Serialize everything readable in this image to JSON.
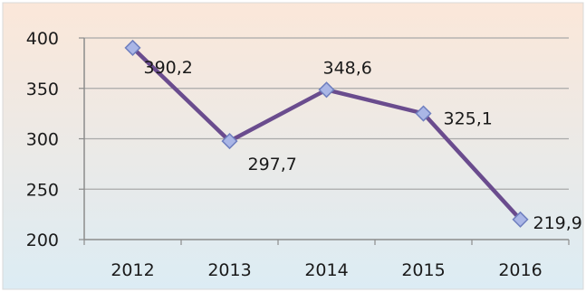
{
  "chart_data": {
    "type": "line",
    "x": [
      "2012",
      "2013",
      "2014",
      "2015",
      "2016"
    ],
    "series": [
      {
        "values": [
          390.2,
          297.7,
          348.6,
          325.1,
          219.9
        ],
        "labels": [
          "390,2",
          "297,7",
          "348,6",
          "325,1",
          "219,9"
        ]
      }
    ],
    "y_ticks": [
      "200",
      "250",
      "300",
      "350",
      "400"
    ],
    "ylim": [
      200,
      400
    ],
    "grid": true,
    "title": "",
    "xlabel": "",
    "ylabel": ""
  },
  "colors": {
    "line": "#6a4c8e",
    "marker_fill": "#aab6e6",
    "marker_stroke": "#6f7fbf",
    "grid": "#a9a9a9",
    "axis": "#8c8c8c",
    "background_top": "#fbe7d9",
    "background_bottom": "#dcecf4"
  }
}
